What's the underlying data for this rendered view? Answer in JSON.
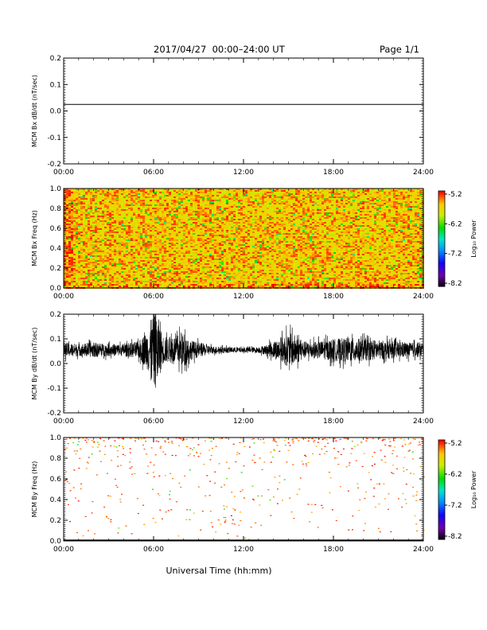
{
  "header": {
    "title": "2017/04/27  00:00–24:00 UT",
    "page": "Page 1/1"
  },
  "xaxis": {
    "label": "Universal Time (hh:mm)",
    "range_hours": [
      0,
      24
    ],
    "ticks": [
      "00:00",
      "06:00",
      "12:00",
      "18:00",
      "24:00"
    ]
  },
  "colorbar": {
    "label": "Log₁₀ Power",
    "range": [
      -8.2,
      -5.2
    ],
    "ticks": [
      "-5.2",
      "-6.2",
      "-7.2",
      "-8.2"
    ]
  },
  "chart_data": [
    {
      "id": "bx-dbdt",
      "type": "line",
      "ylabel": "MCM Bx dB/dt (nT/sec)",
      "ylim": [
        -0.2,
        0.2
      ],
      "yticks": [
        "-0.2",
        "-0.1",
        "0.0",
        "0.1",
        "0.2"
      ],
      "series": [
        {
          "x": [
            0,
            24
          ],
          "y": [
            0.025,
            0.025
          ]
        }
      ]
    },
    {
      "id": "bx-spec",
      "type": "heatmap",
      "ylabel": "MCM Bx Freq (Hz)",
      "ylim": [
        0.0,
        1.0
      ],
      "yticks": [
        "0.0",
        "0.2",
        "0.4",
        "0.6",
        "0.8",
        "1.0"
      ],
      "z_range": [
        -8.2,
        -5.2
      ],
      "typical_log_power": -5.6
    },
    {
      "id": "by-dbdt",
      "type": "line",
      "ylabel": "MCM By dB/dt (nT/sec)",
      "ylim": [
        -0.2,
        0.2
      ],
      "yticks": [
        "-0.2",
        "-0.1",
        "0.0",
        "0.1",
        "0.2"
      ],
      "baseline": 0.055,
      "envelope": {
        "hours": [
          0,
          1,
          2,
          3,
          4,
          5,
          5.6,
          5.9,
          6.2,
          6.6,
          7,
          7.5,
          8,
          8.5,
          9,
          10,
          11,
          12,
          13,
          13.5,
          14,
          14.5,
          15,
          15.5,
          16,
          17,
          18,
          19,
          20,
          21,
          22,
          23,
          24
        ],
        "amplitude": [
          0.03,
          0.025,
          0.03,
          0.025,
          0.025,
          0.035,
          0.08,
          0.14,
          0.16,
          0.06,
          0.05,
          0.06,
          0.07,
          0.04,
          0.03,
          0.015,
          0.012,
          0.01,
          0.012,
          0.02,
          0.035,
          0.05,
          0.07,
          0.06,
          0.035,
          0.035,
          0.045,
          0.05,
          0.045,
          0.04,
          0.035,
          0.03,
          0.03
        ]
      }
    },
    {
      "id": "by-spec",
      "type": "heatmap",
      "ylabel": "MCM By Freq (Hz)",
      "ylim": [
        0.0,
        1.0
      ],
      "yticks": [
        "0.0",
        "0.2",
        "0.4",
        "0.6",
        "0.8",
        "1.0"
      ],
      "z_range": [
        -8.2,
        -5.2
      ],
      "typical_log_power": -5.3,
      "note": "sparse points, mostly above 0.6 Hz"
    }
  ]
}
